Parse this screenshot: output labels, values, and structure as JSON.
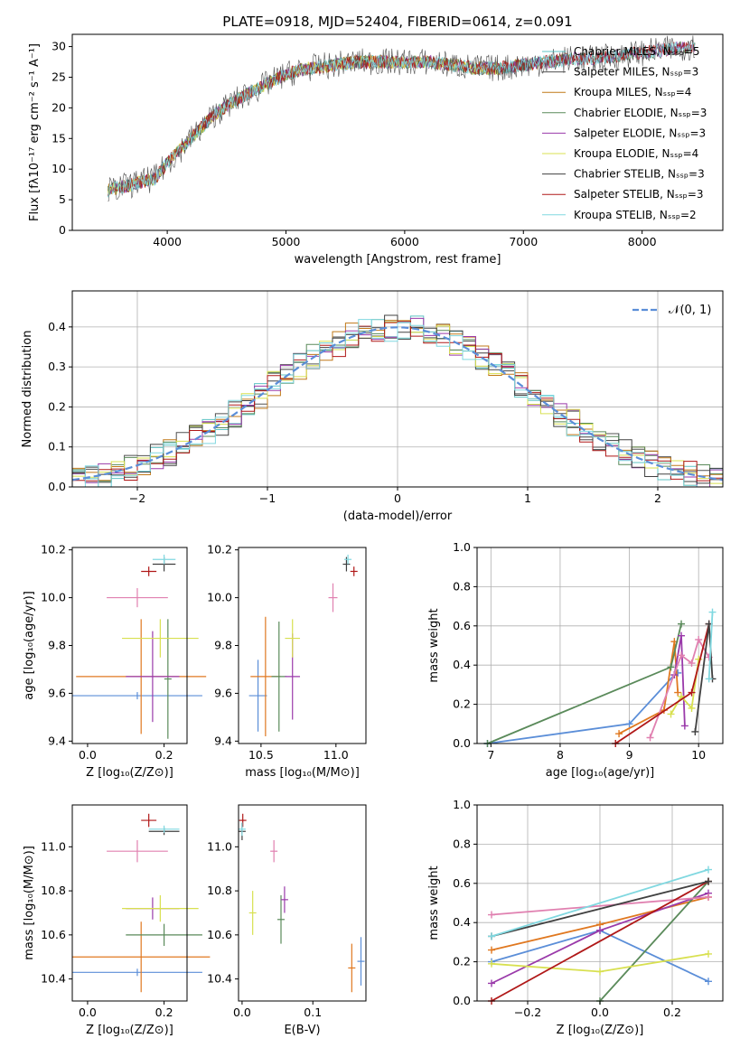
{
  "figure": {
    "title": "PLATE=0918, MJD=52404, FIBERID=0614, z=0.091"
  },
  "chart_data": [
    {
      "id": "spectrum",
      "type": "line",
      "xlabel": "wavelength [Angstrom, rest frame]",
      "ylabel": "Flux [fλ10⁻¹⁷ erg cm⁻² s⁻¹ A⁻¹]",
      "xlim": [
        3200,
        8680
      ],
      "ylim": [
        0,
        32
      ],
      "xticks": [
        4000,
        5000,
        6000,
        7000,
        8000
      ],
      "yticks": [
        0,
        5,
        10,
        15,
        20,
        25,
        30
      ],
      "grid": false,
      "legend_position": "top-right",
      "legend": [
        {
          "label": "Chabrier MILES, Nₛₛₚ=5",
          "color": "#5fc4c4"
        },
        {
          "label": "Salpeter MILES, Nₛₛₚ=3",
          "color": "#505050"
        },
        {
          "label": "Kroupa MILES, Nₛₛₚ=4",
          "color": "#c07818"
        },
        {
          "label": "Chabrier ELODIE, Nₛₛₚ=3",
          "color": "#5a8a5a"
        },
        {
          "label": "Salpeter ELODIE, Nₛₛₚ=3",
          "color": "#9a3aaa"
        },
        {
          "label": "Kroupa ELODIE, Nₛₛₚ=4",
          "color": "#d8e050"
        },
        {
          "label": "Chabrier STELIB, Nₛₛₚ=3",
          "color": "#404040"
        },
        {
          "label": "Salpeter STELIB, Nₛₛₚ=3",
          "color": "#b01818"
        },
        {
          "label": "Kroupa STELIB, Nₛₛₚ=2",
          "color": "#80d8e0"
        }
      ],
      "continuum": {
        "x": [
          3500,
          3700,
          3900,
          4000,
          4200,
          4400,
          4600,
          4800,
          5000,
          5200,
          5400,
          5600,
          5800,
          6000,
          6200,
          6400,
          6600,
          6800,
          7000,
          7200,
          7400,
          7600,
          7800,
          8000,
          8200,
          8400
        ],
        "y": [
          6.5,
          7.5,
          8.5,
          11,
          15,
          19,
          21.5,
          23.5,
          25.5,
          26.5,
          27,
          27.5,
          27.5,
          27.5,
          27.5,
          27,
          26.5,
          26.5,
          27,
          27.5,
          28,
          28,
          28.5,
          29,
          29.5,
          30
        ]
      }
    },
    {
      "id": "residuals",
      "type": "bar",
      "xlabel": "(data-model)/error",
      "ylabel": "Normed distribution",
      "xlim": [
        -2.5,
        2.5
      ],
      "ylim": [
        0,
        0.49
      ],
      "xticks": [
        -2,
        -1,
        0,
        1,
        2
      ],
      "yticks": [
        0.0,
        0.1,
        0.2,
        0.3,
        0.4
      ],
      "grid": true,
      "legend_position": "top-right",
      "reference_curve_label": "𝒩(0, 1)",
      "reference_curve_color": "#5b8ed8",
      "bin_width": 0.1,
      "series_colors": [
        "#5fc4c4",
        "#505050",
        "#c07818",
        "#5a8a5a",
        "#9a3aaa",
        "#d8e050",
        "#404040",
        "#b01818",
        "#80d8e0"
      ]
    },
    {
      "id": "age_vs_Z",
      "type": "scatter",
      "xlabel": "Z [log₁₀(Z/Z⊙)]",
      "ylabel": "age  [log₁₀(age/yr)]",
      "xlim": [
        -0.04,
        0.26
      ],
      "ylim": [
        9.39,
        10.21
      ],
      "xticks": [
        0.0,
        0.2
      ],
      "yticks": [
        9.4,
        9.6,
        9.8,
        10.0,
        10.2
      ],
      "grid": false,
      "points": [
        {
          "x": 0.13,
          "y": 9.59,
          "xerr": 0.17,
          "yerr": 0.0,
          "color": "#5b8ed8"
        },
        {
          "x": 0.14,
          "y": 9.67,
          "xerr": 0.17,
          "yerr": 0.24,
          "color": "#e07820"
        },
        {
          "x": 0.21,
          "y": 9.66,
          "xerr": 0.0,
          "yerr": 0.25,
          "color": "#5a8a5a"
        },
        {
          "x": 0.17,
          "y": 9.67,
          "xerr": 0.07,
          "yerr": 0.19,
          "color": "#9a3aaa"
        },
        {
          "x": 0.19,
          "y": 9.83,
          "xerr": 0.1,
          "yerr": 0.08,
          "color": "#d8e050"
        },
        {
          "x": 0.13,
          "y": 10.0,
          "xerr": 0.08,
          "yerr": 0.04,
          "color": "#e080b0"
        },
        {
          "x": 0.16,
          "y": 10.11,
          "xerr": 0.02,
          "yerr": 0.02,
          "color": "#b01818"
        },
        {
          "x": 0.2,
          "y": 10.14,
          "xerr": 0.03,
          "yerr": 0.03,
          "color": "#404040"
        },
        {
          "x": 0.2,
          "y": 10.16,
          "xerr": 0.03,
          "yerr": 0.02,
          "color": "#80d8e0"
        }
      ]
    },
    {
      "id": "age_vs_mass",
      "type": "scatter",
      "xlabel": "mass [log₁₀(M/M⊙)]",
      "ylabel": "",
      "xlim": [
        10.35,
        11.2
      ],
      "ylim": [
        9.39,
        10.21
      ],
      "xticks": [
        10.5,
        11.0
      ],
      "yticks": [
        9.4,
        9.6,
        9.8,
        10.0,
        10.2
      ],
      "grid": false,
      "points": [
        {
          "x": 10.48,
          "y": 9.59,
          "xerr": 0.06,
          "yerr": 0.15,
          "color": "#5b8ed8"
        },
        {
          "x": 10.53,
          "y": 9.67,
          "xerr": 0.1,
          "yerr": 0.25,
          "color": "#e07820"
        },
        {
          "x": 10.62,
          "y": 9.67,
          "xerr": 0.05,
          "yerr": 0.23,
          "color": "#5a8a5a"
        },
        {
          "x": 10.71,
          "y": 9.67,
          "xerr": 0.05,
          "yerr": 0.18,
          "color": "#9a3aaa"
        },
        {
          "x": 10.71,
          "y": 9.83,
          "xerr": 0.05,
          "yerr": 0.08,
          "color": "#d8e050"
        },
        {
          "x": 10.98,
          "y": 10.0,
          "xerr": 0.03,
          "yerr": 0.06,
          "color": "#e080b0"
        },
        {
          "x": 11.12,
          "y": 10.11,
          "xerr": 0.02,
          "yerr": 0.02,
          "color": "#b01818"
        },
        {
          "x": 11.07,
          "y": 10.14,
          "xerr": 0.01,
          "yerr": 0.03,
          "color": "#404040"
        },
        {
          "x": 11.08,
          "y": 10.16,
          "xerr": 0.01,
          "yerr": 0.02,
          "color": "#80d8e0"
        }
      ]
    },
    {
      "id": "weight_vs_age",
      "type": "line",
      "xlabel": "age  [log₁₀(age/yr)]",
      "ylabel": "mass weight",
      "xlim": [
        6.8,
        10.35
      ],
      "ylim": [
        0,
        1.0
      ],
      "xticks": [
        7,
        8,
        9,
        10
      ],
      "yticks": [
        0.0,
        0.2,
        0.4,
        0.6,
        0.8,
        1.0
      ],
      "grid": true,
      "series": [
        {
          "color": "#5b8ed8",
          "x": [
            6.95,
            9.0,
            9.65,
            9.7
          ],
          "y": [
            0.0,
            0.1,
            0.35,
            0.36
          ]
        },
        {
          "color": "#e07820",
          "x": [
            8.85,
            9.5,
            9.65,
            9.7
          ],
          "y": [
            0.05,
            0.17,
            0.52,
            0.26
          ]
        },
        {
          "color": "#5a8a5a",
          "x": [
            6.95,
            9.6,
            9.75
          ],
          "y": [
            0.0,
            0.39,
            0.61
          ]
        },
        {
          "color": "#9a3aaa",
          "x": [
            9.65,
            9.75,
            9.8
          ],
          "y": [
            0.35,
            0.55,
            0.09
          ]
        },
        {
          "color": "#d8e050",
          "x": [
            9.6,
            9.75,
            9.9,
            10.0
          ],
          "y": [
            0.15,
            0.24,
            0.18,
            0.43
          ]
        },
        {
          "color": "#e080b0",
          "x": [
            9.3,
            9.75,
            9.9,
            10.0,
            10.15
          ],
          "y": [
            0.03,
            0.45,
            0.41,
            0.53,
            0.44
          ]
        },
        {
          "color": "#b01818",
          "x": [
            8.8,
            9.9,
            10.15
          ],
          "y": [
            0.0,
            0.26,
            0.61
          ]
        },
        {
          "color": "#404040",
          "x": [
            9.95,
            10.15,
            10.2
          ],
          "y": [
            0.06,
            0.61,
            0.33
          ]
        },
        {
          "color": "#80d8e0",
          "x": [
            10.15,
            10.2
          ],
          "y": [
            0.33,
            0.67
          ]
        }
      ]
    },
    {
      "id": "mass_vs_Z",
      "type": "scatter",
      "xlabel": "Z [log₁₀(Z/Z⊙)]",
      "ylabel": "mass [log₁₀(M/M⊙)]",
      "xlim": [
        -0.04,
        0.26
      ],
      "ylim": [
        10.3,
        11.19
      ],
      "xticks": [
        0.0,
        0.2
      ],
      "yticks": [
        10.4,
        10.6,
        10.8,
        11.0
      ],
      "grid": false,
      "points": [
        {
          "x": 0.13,
          "y": 10.43,
          "xerr": 0.17,
          "yerr": 0.0,
          "color": "#5b8ed8"
        },
        {
          "x": 0.14,
          "y": 10.5,
          "xerr": 0.18,
          "yerr": 0.16,
          "color": "#e07820"
        },
        {
          "x": 0.2,
          "y": 10.6,
          "xerr": 0.1,
          "yerr": 0.05,
          "color": "#5a8a5a"
        },
        {
          "x": 0.17,
          "y": 10.72,
          "xerr": 0.07,
          "yerr": 0.05,
          "color": "#9a3aaa"
        },
        {
          "x": 0.19,
          "y": 10.72,
          "xerr": 0.1,
          "yerr": 0.06,
          "color": "#d8e050"
        },
        {
          "x": 0.13,
          "y": 10.98,
          "xerr": 0.08,
          "yerr": 0.05,
          "color": "#e080b0"
        },
        {
          "x": 0.16,
          "y": 11.12,
          "xerr": 0.02,
          "yerr": 0.03,
          "color": "#b01818"
        },
        {
          "x": 0.2,
          "y": 11.07,
          "xerr": 0.04,
          "yerr": 0.0,
          "color": "#404040"
        },
        {
          "x": 0.2,
          "y": 11.08,
          "xerr": 0.04,
          "yerr": 0.0,
          "color": "#80d8e0"
        }
      ]
    },
    {
      "id": "mass_vs_EBV",
      "type": "scatter",
      "xlabel": "E(B-V)",
      "ylabel": "",
      "xlim": [
        -0.005,
        0.175
      ],
      "ylim": [
        10.3,
        11.19
      ],
      "xticks": [
        0.0,
        0.1
      ],
      "yticks": [
        10.4,
        10.6,
        10.8,
        11.0
      ],
      "grid": false,
      "points": [
        {
          "x": 0.168,
          "y": 10.48,
          "xerr": 0.0,
          "yerr": 0.11,
          "color": "#5b8ed8"
        },
        {
          "x": 0.155,
          "y": 10.45,
          "xerr": 0.0,
          "yerr": 0.11,
          "color": "#e07820"
        },
        {
          "x": 0.055,
          "y": 10.67,
          "xerr": 0.0,
          "yerr": 0.11,
          "color": "#5a8a5a"
        },
        {
          "x": 0.06,
          "y": 10.76,
          "xerr": 0.0,
          "yerr": 0.06,
          "color": "#9a3aaa"
        },
        {
          "x": 0.015,
          "y": 10.7,
          "xerr": 0.0,
          "yerr": 0.1,
          "color": "#d8e050"
        },
        {
          "x": 0.045,
          "y": 10.98,
          "xerr": 0.0,
          "yerr": 0.05,
          "color": "#e080b0"
        },
        {
          "x": 0.001,
          "y": 11.12,
          "xerr": 0.0,
          "yerr": 0.03,
          "color": "#b01818"
        },
        {
          "x": 0.0,
          "y": 11.07,
          "xerr": 0.0,
          "yerr": 0.04,
          "color": "#404040"
        },
        {
          "x": 0.0,
          "y": 11.08,
          "xerr": 0.0,
          "yerr": 0.03,
          "color": "#80d8e0"
        }
      ]
    },
    {
      "id": "weight_vs_Z",
      "type": "line",
      "xlabel": "Z [log₁₀(Z/Z⊙)]",
      "ylabel": "mass weight",
      "xlim": [
        -0.34,
        0.34
      ],
      "ylim": [
        0,
        1.0
      ],
      "xticks": [
        -0.2,
        0.0,
        0.2
      ],
      "yticks": [
        0.0,
        0.2,
        0.4,
        0.6,
        0.8,
        1.0
      ],
      "grid": true,
      "series": [
        {
          "color": "#5b8ed8",
          "x": [
            -0.3,
            0.0,
            0.3
          ],
          "y": [
            0.2,
            0.36,
            0.1
          ]
        },
        {
          "color": "#e07820",
          "x": [
            -0.3,
            0.0,
            0.3
          ],
          "y": [
            0.26,
            0.39,
            0.53
          ]
        },
        {
          "color": "#5a8a5a",
          "x": [
            0.0,
            0.3
          ],
          "y": [
            0.0,
            0.61
          ]
        },
        {
          "color": "#9a3aaa",
          "x": [
            -0.3,
            0.0,
            0.3
          ],
          "y": [
            0.09,
            0.36,
            0.55
          ]
        },
        {
          "color": "#d8e050",
          "x": [
            -0.3,
            0.0,
            0.3
          ],
          "y": [
            0.19,
            0.15,
            0.24
          ]
        },
        {
          "color": "#e080b0",
          "x": [
            -0.3,
            0.3
          ],
          "y": [
            0.44,
            0.53
          ]
        },
        {
          "color": "#b01818",
          "x": [
            -0.3,
            0.3
          ],
          "y": [
            0.0,
            0.61
          ]
        },
        {
          "color": "#404040",
          "x": [
            -0.3,
            0.3
          ],
          "y": [
            0.33,
            0.61
          ]
        },
        {
          "color": "#80d8e0",
          "x": [
            -0.3,
            0.3
          ],
          "y": [
            0.33,
            0.67
          ]
        }
      ]
    }
  ]
}
